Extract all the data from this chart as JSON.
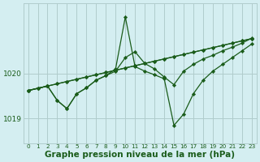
{
  "bg_color": "#d4eef1",
  "grid_color": "#b0cccc",
  "line_color": "#1a5c1a",
  "marker_color": "#1a5c1a",
  "xlabel": "Graphe pression niveau de la mer (hPa)",
  "xlabel_fontsize": 7.5,
  "ylabel_ticks": [
    1019,
    1020
  ],
  "ylim": [
    1018.45,
    1021.55
  ],
  "xlim": [
    -0.5,
    23.5
  ],
  "xticks": [
    0,
    1,
    2,
    3,
    4,
    5,
    6,
    7,
    8,
    9,
    10,
    11,
    12,
    13,
    14,
    15,
    16,
    17,
    18,
    19,
    20,
    21,
    22,
    23
  ],
  "series": [
    {
      "x": [
        0,
        1,
        2,
        3,
        4,
        5,
        6,
        7,
        8,
        9,
        10,
        11,
        12,
        13,
        14,
        15,
        16,
        17,
        18,
        19,
        20,
        21,
        22,
        23
      ],
      "y": [
        1019.62,
        1019.67,
        1019.72,
        1019.77,
        1019.82,
        1019.87,
        1019.92,
        1019.97,
        1020.02,
        1020.07,
        1020.12,
        1020.17,
        1020.22,
        1020.27,
        1020.32,
        1020.37,
        1020.42,
        1020.47,
        1020.52,
        1020.57,
        1020.62,
        1020.67,
        1020.72,
        1020.77
      ]
    },
    {
      "x": [
        0,
        1,
        2,
        3,
        4,
        5,
        6,
        7,
        8,
        9,
        10,
        11,
        12,
        13,
        14,
        15,
        16,
        17,
        18,
        19,
        20,
        21,
        22,
        23
      ],
      "y": [
        1019.62,
        1019.67,
        1019.72,
        1019.77,
        1019.82,
        1019.87,
        1019.92,
        1019.97,
        1020.02,
        1020.07,
        1020.12,
        1020.17,
        1020.22,
        1020.27,
        1020.32,
        1020.37,
        1020.42,
        1020.47,
        1020.52,
        1020.57,
        1020.62,
        1020.67,
        1020.72,
        1020.77
      ]
    },
    {
      "x": [
        0,
        1,
        2,
        3,
        4,
        5,
        6,
        7,
        8,
        9,
        10,
        11,
        12,
        13,
        14,
        15,
        16,
        17,
        18,
        19,
        20,
        21,
        22,
        23
      ],
      "y": [
        1019.62,
        1019.67,
        1019.72,
        1019.4,
        1019.22,
        1019.55,
        1019.68,
        1019.85,
        1019.95,
        1020.1,
        1021.25,
        1020.15,
        1020.05,
        1019.97,
        1019.88,
        1018.85,
        1019.1,
        1019.55,
        1019.85,
        1020.05,
        1020.2,
        1020.35,
        1020.5,
        1020.65
      ]
    },
    {
      "x": [
        0,
        2,
        3,
        4,
        5,
        6,
        7,
        8,
        9,
        10,
        11,
        12,
        13,
        14,
        15,
        16,
        17,
        18,
        19,
        20,
        21,
        22,
        23
      ],
      "y": [
        1019.62,
        1019.72,
        1019.4,
        1019.22,
        1019.55,
        1019.68,
        1019.85,
        1019.95,
        1020.05,
        1020.35,
        1020.48,
        1020.22,
        1020.1,
        1019.92,
        1019.75,
        1020.05,
        1020.2,
        1020.32,
        1020.4,
        1020.5,
        1020.58,
        1020.67,
        1020.78
      ]
    }
  ]
}
